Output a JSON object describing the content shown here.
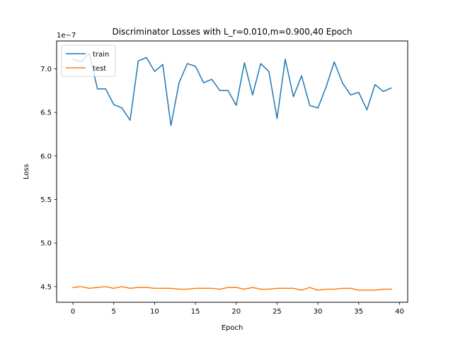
{
  "chart_data": {
    "type": "line",
    "title": "Discriminator Losses with L_r=0.010,m=0.900,40 Epoch",
    "xlabel": "Epoch",
    "ylabel": "Loss",
    "offset_text": "1e−7",
    "xlim": [
      -2,
      41
    ],
    "ylim": [
      4.32,
      7.32
    ],
    "x_ticks": [
      0,
      5,
      10,
      15,
      20,
      25,
      30,
      35,
      40
    ],
    "x_tick_labels": [
      "0",
      "5",
      "10",
      "15",
      "20",
      "25",
      "30",
      "35",
      "40"
    ],
    "y_ticks": [
      4.5,
      5.0,
      5.5,
      6.0,
      6.5,
      7.0
    ],
    "y_tick_labels": [
      "4.5",
      "5.0",
      "5.5",
      "6.0",
      "6.5",
      "7.0"
    ],
    "grid": false,
    "legend_position": "upper-left",
    "x": [
      0,
      1,
      2,
      3,
      4,
      5,
      6,
      7,
      8,
      9,
      10,
      11,
      12,
      13,
      14,
      15,
      16,
      17,
      18,
      19,
      20,
      21,
      22,
      23,
      24,
      25,
      26,
      27,
      28,
      29,
      30,
      31,
      32,
      33,
      34,
      35,
      36,
      37,
      38,
      39
    ],
    "series": [
      {
        "name": "train",
        "color": "#1f77b4",
        "values": [
          7.11,
          7.08,
          7.18,
          6.77,
          6.77,
          6.59,
          6.55,
          6.41,
          7.09,
          7.13,
          6.97,
          7.05,
          6.35,
          6.84,
          7.06,
          7.03,
          6.84,
          6.88,
          6.75,
          6.75,
          6.58,
          7.07,
          6.7,
          7.06,
          6.97,
          6.43,
          7.11,
          6.68,
          6.92,
          6.58,
          6.55,
          6.79,
          7.08,
          6.84,
          6.7,
          6.73,
          6.53,
          6.82,
          6.74,
          6.78
        ]
      },
      {
        "name": "test",
        "color": "#ff7f0e",
        "values": [
          4.49,
          4.5,
          4.48,
          4.49,
          4.5,
          4.48,
          4.5,
          4.48,
          4.49,
          4.49,
          4.48,
          4.48,
          4.48,
          4.47,
          4.47,
          4.48,
          4.48,
          4.48,
          4.47,
          4.49,
          4.49,
          4.47,
          4.49,
          4.47,
          4.47,
          4.48,
          4.48,
          4.48,
          4.46,
          4.49,
          4.46,
          4.47,
          4.47,
          4.48,
          4.48,
          4.46,
          4.46,
          4.46,
          4.47,
          4.47
        ]
      }
    ]
  }
}
